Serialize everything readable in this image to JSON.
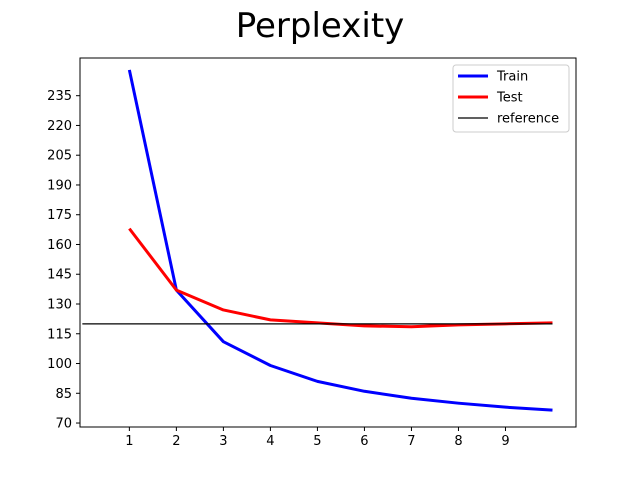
{
  "chart_data": {
    "type": "line",
    "title": "Perplexity",
    "xlabel": "",
    "ylabel": "",
    "x_ticks": [
      1,
      2,
      3,
      4,
      5,
      6,
      7,
      8,
      9
    ],
    "y_ticks": [
      70,
      85,
      100,
      115,
      130,
      145,
      160,
      175,
      190,
      205,
      220,
      235
    ],
    "xlim": [
      -0.05,
      10.5
    ],
    "ylim": [
      68,
      254
    ],
    "grid": false,
    "legend_position": "top-right",
    "series": [
      {
        "name": "Train",
        "color": "#0000ff",
        "x": [
          1,
          2,
          3,
          4,
          5,
          6,
          7,
          8,
          9,
          10
        ],
        "values": [
          248,
          137,
          111,
          99,
          91,
          86,
          82.5,
          80,
          78,
          76.5
        ]
      },
      {
        "name": "Test",
        "color": "#ff0000",
        "x": [
          1,
          2,
          3,
          4,
          5,
          6,
          7,
          8,
          9,
          10
        ],
        "values": [
          168,
          137,
          127,
          122,
          120.5,
          119,
          118.5,
          119.5,
          120,
          120.5
        ]
      },
      {
        "name": "reference",
        "color": "#000000",
        "x": [
          0,
          10
        ],
        "values": [
          120,
          120
        ]
      }
    ]
  }
}
